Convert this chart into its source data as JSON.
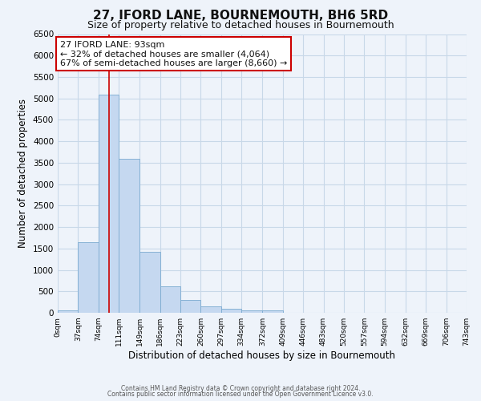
{
  "title": "27, IFORD LANE, BOURNEMOUTH, BH6 5RD",
  "subtitle": "Size of property relative to detached houses in Bournemouth",
  "xlabel": "Distribution of detached houses by size in Bournemouth",
  "ylabel": "Number of detached properties",
  "bin_edges": [
    0,
    37,
    74,
    111,
    149,
    186,
    223,
    260,
    297,
    334,
    372,
    409,
    446,
    483,
    520,
    557,
    594,
    632,
    669,
    706,
    743
  ],
  "bar_heights": [
    50,
    1650,
    5080,
    3600,
    1420,
    620,
    300,
    150,
    100,
    50,
    50,
    0,
    0,
    0,
    0,
    0,
    0,
    0,
    0,
    0
  ],
  "bar_color": "#c5d8f0",
  "bar_edge_color": "#7aaad0",
  "grid_color": "#c8d8e8",
  "bg_color": "#eef3fa",
  "vline_x": 93,
  "vline_color": "#cc0000",
  "annotation_line1": "27 IFORD LANE: 93sqm",
  "annotation_line2": "← 32% of detached houses are smaller (4,064)",
  "annotation_line3": "67% of semi-detached houses are larger (8,660) →",
  "ylim": [
    0,
    6500
  ],
  "yticks": [
    0,
    500,
    1000,
    1500,
    2000,
    2500,
    3000,
    3500,
    4000,
    4500,
    5000,
    5500,
    6000,
    6500
  ],
  "footer_line1": "Contains HM Land Registry data © Crown copyright and database right 2024.",
  "footer_line2": "Contains public sector information licensed under the Open Government Licence v3.0.",
  "title_fontsize": 11,
  "subtitle_fontsize": 9,
  "xlabel_fontsize": 8.5,
  "ylabel_fontsize": 8.5,
  "annotation_fontsize": 8
}
